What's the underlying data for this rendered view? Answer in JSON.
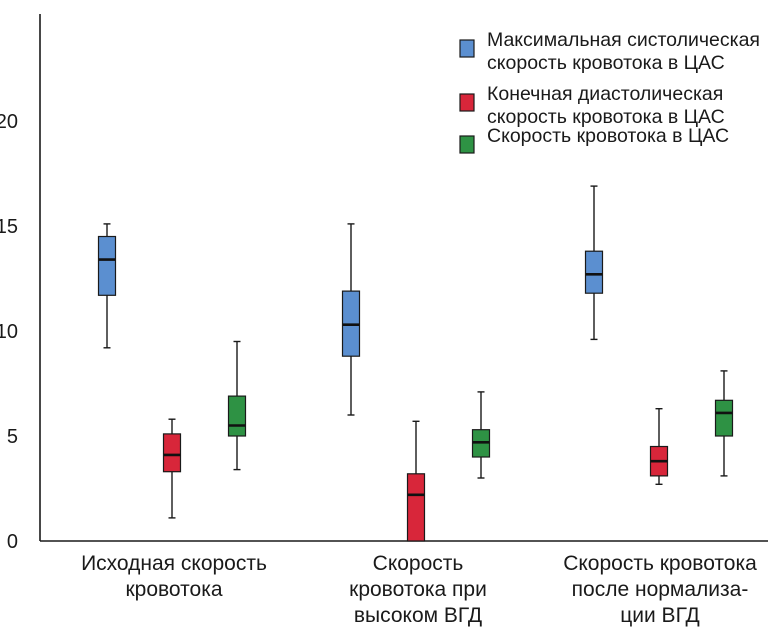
{
  "chart_data": {
    "type": "boxplot",
    "title": "",
    "xlabel": "",
    "ylabel": "",
    "ylim": [
      0,
      25
    ],
    "yticks": [
      "0",
      "5",
      "10",
      "15",
      "20"
    ],
    "yticks_values": [
      0,
      5,
      10,
      15,
      20
    ],
    "categories": [
      {
        "lines": [
          "Исходная скорость",
          "кровотока"
        ]
      },
      {
        "lines": [
          "Скорость",
          "кровотока при",
          "высоком ВГД"
        ]
      },
      {
        "lines": [
          "Скорость кровотока",
          "после нормализа-",
          "ции ВГД"
        ]
      }
    ],
    "series": [
      {
        "name_lines": [
          "Максимальная систолическая",
          "скорость кровотока в ЦАС"
        ],
        "color": "#5b8fd0",
        "boxes": [
          {
            "min": 9.2,
            "q1": 11.7,
            "median": 13.4,
            "q3": 14.5,
            "max": 15.1
          },
          {
            "min": 6.0,
            "q1": 8.8,
            "median": 10.3,
            "q3": 11.9,
            "max": 15.1
          },
          {
            "min": 9.6,
            "q1": 11.8,
            "median": 12.7,
            "q3": 13.8,
            "max": 16.9
          }
        ]
      },
      {
        "name_lines": [
          "Конечная диастолическая",
          "скорость кровотока в ЦАС"
        ],
        "color": "#d8263a",
        "boxes": [
          {
            "min": 1.1,
            "q1": 3.3,
            "median": 4.1,
            "q3": 5.1,
            "max": 5.8
          },
          {
            "min": 0.0,
            "q1": 0.0,
            "median": 2.2,
            "q3": 3.2,
            "max": 5.7
          },
          {
            "min": 2.7,
            "q1": 3.1,
            "median": 3.8,
            "q3": 4.5,
            "max": 6.3
          }
        ]
      },
      {
        "name_lines": [
          "Скорость кровотока в ЦАС"
        ],
        "color": "#2e9244",
        "boxes": [
          {
            "min": 3.4,
            "q1": 5.0,
            "median": 5.5,
            "q3": 6.9,
            "max": 9.5
          },
          {
            "min": 3.0,
            "q1": 4.0,
            "median": 4.7,
            "q3": 5.3,
            "max": 7.1
          },
          {
            "min": 3.1,
            "q1": 5.0,
            "median": 6.1,
            "q3": 6.7,
            "max": 8.1
          }
        ]
      }
    ],
    "legend_position": "top-right"
  }
}
